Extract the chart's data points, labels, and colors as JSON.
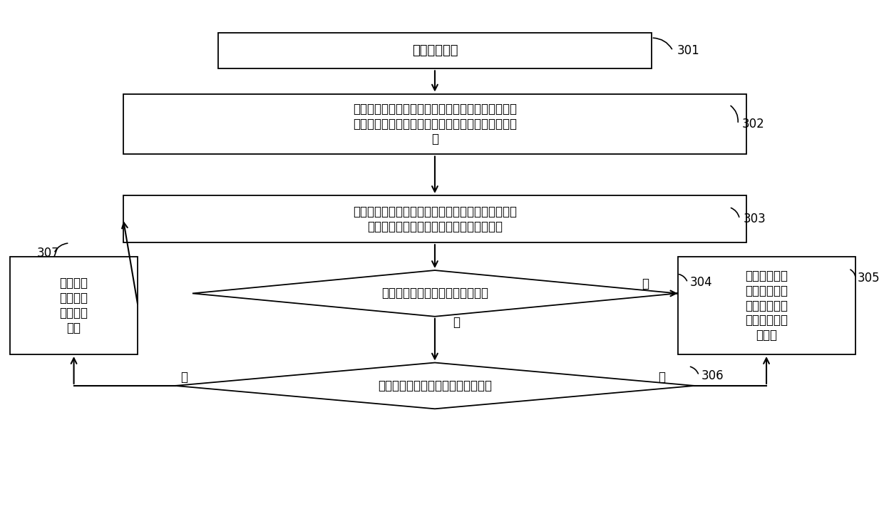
{
  "bg_color": "#ffffff",
  "box_color": "#ffffff",
  "box_edge_color": "#000000",
  "arrow_color": "#000000",
  "text_color": "#000000",
  "title_301": "确定初始参数",
  "title_302": "以最大组的用户不舒适度最小为目标，以温度设定范\n围和最大跟踪误差为约束条件，建立第二优化目标模\n型",
  "title_303": "采用活跃目标粒子群算法，计算所述第二优化目标模\n型，得到当前目标解，并记录当前迭代次数",
  "title_304": "所述当前目标解小于第二设定阈值",
  "title_305": "保存所述当前\n目标解对应的\n温度设定值，\n结束并退出迭\n代循环",
  "title_306": "所述当前迭代次数达到所述迭代总数",
  "title_307": "更新温度\n设定值和\n当前迭代\n次数",
  "step_labels": [
    "301",
    "302",
    "303",
    "304",
    "305",
    "306",
    "307"
  ],
  "yes_labels": [
    "是",
    "是"
  ],
  "no_labels": [
    "否",
    "否"
  ]
}
